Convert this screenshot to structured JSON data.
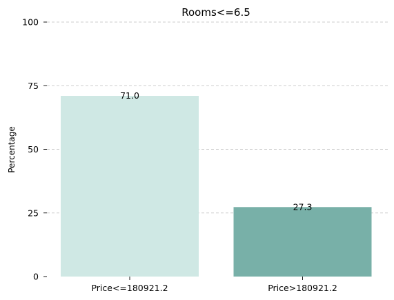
{
  "chart_data": {
    "type": "bar",
    "title": "Rooms<=6.5",
    "xlabel": "",
    "ylabel": "Percentage",
    "categories": [
      "Price<=180921.2",
      "Price>180921.2"
    ],
    "values": [
      71.0,
      27.3
    ],
    "data_labels": [
      "71.0",
      "27.3"
    ],
    "colors": [
      "#cfe8e4",
      "#78b0a8"
    ],
    "ylim": [
      0,
      100
    ],
    "yticks": [
      0,
      25,
      50,
      75,
      100
    ],
    "ytick_labels": [
      "0",
      "25",
      "50",
      "75",
      "100"
    ],
    "grid": true,
    "grid_axis": "y"
  }
}
